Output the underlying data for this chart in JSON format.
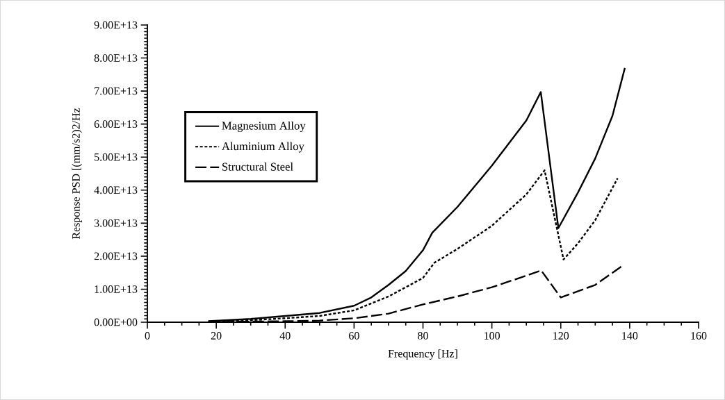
{
  "chart_data": {
    "type": "line",
    "xlabel": "Frequency [Hz]",
    "ylabel": "Response PSD [(mm/s2)2/Hz",
    "xlim": [
      0,
      160
    ],
    "xticks": [
      0,
      20,
      40,
      60,
      80,
      100,
      120,
      140,
      160
    ],
    "ylim": [
      0,
      90000000000000.0
    ],
    "yticks": [
      {
        "value": 0,
        "label": "0.00E+00"
      },
      {
        "value": 10000000000000.0,
        "label": "1.00E+13"
      },
      {
        "value": 20000000000000.0,
        "label": "2.00E+13"
      },
      {
        "value": 30000000000000.0,
        "label": "3.00E+13"
      },
      {
        "value": 40000000000000.0,
        "label": "4.00E+13"
      },
      {
        "value": 50000000000000.0,
        "label": "5.00E+13"
      },
      {
        "value": 60000000000000.0,
        "label": "6.00E+13"
      },
      {
        "value": 70000000000000.0,
        "label": "7.00E+13"
      },
      {
        "value": 80000000000000.0,
        "label": "8.00E+13"
      },
      {
        "value": 90000000000000.0,
        "label": "9.00E+13"
      }
    ],
    "legend": "top left",
    "grid": false,
    "series": [
      {
        "name": "Magnesium Alloy",
        "color": "#000000",
        "line_style": "solid",
        "x": [
          17.7,
          30,
          40,
          50,
          60,
          65,
          70,
          75,
          80,
          82.7,
          90,
          100,
          110,
          114.2,
          119.3,
          125,
          130,
          135,
          138.6
        ],
        "values": [
          300000000000.0,
          1000000000000.0,
          1900000000000.0,
          2800000000000.0,
          5000000000000.0,
          7500000000000.0,
          11300000000000.0,
          15500000000000.0,
          21800000000000.0,
          27100000000000.0,
          34900000000000.0,
          47400000000000.0,
          61100000000000.0,
          69700000000000.0,
          28500000000000.0,
          39300000000000.0,
          49600000000000.0,
          62500000000000.0,
          77000000000000.0
        ]
      },
      {
        "name": "Aluminium Alloy",
        "color": "#000000",
        "line_style": "dotted",
        "x": [
          17.7,
          30,
          40,
          50,
          60,
          70,
          80,
          83.3,
          90,
          100,
          110,
          115.3,
          120.8,
          125,
          130,
          136.5
        ],
        "values": [
          200000000000.0,
          600000000000.0,
          1200000000000.0,
          1900000000000.0,
          3600000000000.0,
          7800000000000.0,
          13400000000000.0,
          18000000000000.0,
          22200000000000.0,
          29200000000000.0,
          38700000000000.0,
          46000000000000.0,
          19000000000000.0,
          23900000000000.0,
          30900000000000.0,
          43600000000000.0
        ]
      },
      {
        "name": "Structural Steel",
        "color": "#000000",
        "line_style": "dashed",
        "x": [
          17.7,
          30,
          40,
          50,
          60,
          70,
          80,
          90,
          100,
          110,
          114.3,
          120,
          130,
          138.2
        ],
        "values": [
          100000000000.0,
          200000000000.0,
          300000000000.0,
          500000000000.0,
          1200000000000.0,
          2600000000000.0,
          5400000000000.0,
          7800000000000.0,
          10600000000000.0,
          14100000000000.0,
          15700000000000.0,
          7500000000000.0,
          11300000000000.0,
          17300000000000.0
        ]
      }
    ]
  }
}
